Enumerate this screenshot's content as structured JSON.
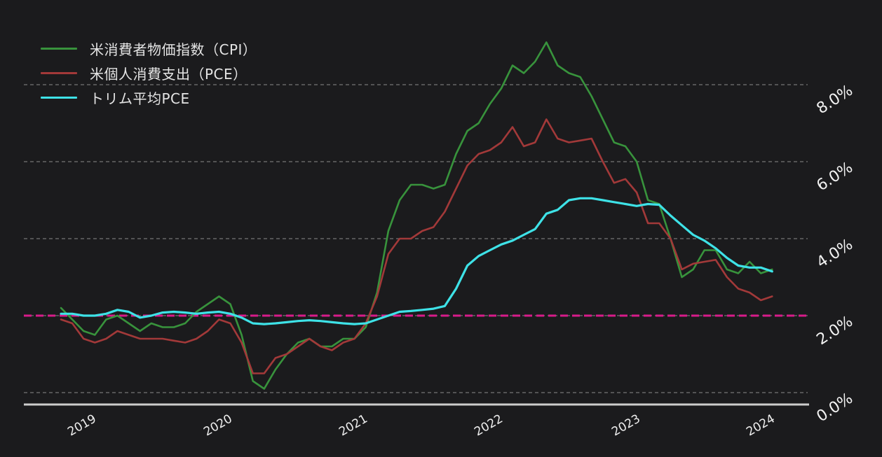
{
  "chart_data": {
    "type": "line",
    "title": "",
    "x_start": "2018-11",
    "x_end": "2024-02",
    "x_frequency": "monthly",
    "x_tick_labels": [
      "2019",
      "2020",
      "2021",
      "2022",
      "2023",
      "2024"
    ],
    "y_tick_labels": [
      "8.0%",
      "6.0%",
      "4.0%",
      "2.0%",
      "0.0%"
    ],
    "y_gridline_values": [
      8.0,
      6.0,
      4.0,
      2.0,
      0.0
    ],
    "ylim": [
      0,
      9.6
    ],
    "grid": "dashed-horizontal",
    "legend_position": "top-left",
    "background_color": "#1b1b1d",
    "gridline_color": "#a8a8a8",
    "axis_line_color": "#cccccc",
    "target_line": {
      "value": 2.0,
      "color": "#d81b8a",
      "style": "dashed"
    },
    "series": [
      {
        "name": "cpi",
        "label": "米消費者物価指数（CPI）",
        "color": "#38933c",
        "values": [
          2.2,
          1.9,
          1.6,
          1.5,
          1.9,
          2.0,
          1.8,
          1.6,
          1.8,
          1.7,
          1.7,
          1.8,
          2.1,
          2.3,
          2.5,
          2.3,
          1.5,
          0.3,
          0.1,
          0.6,
          1.0,
          1.3,
          1.4,
          1.2,
          1.2,
          1.4,
          1.4,
          1.7,
          2.6,
          4.2,
          5.0,
          5.4,
          5.4,
          5.3,
          5.4,
          6.2,
          6.8,
          7.0,
          7.5,
          7.9,
          8.5,
          8.3,
          8.6,
          9.1,
          8.5,
          8.3,
          8.2,
          7.7,
          7.1,
          6.5,
          6.4,
          6.0,
          5.0,
          4.9,
          4.0,
          3.0,
          3.2,
          3.7,
          3.7,
          3.2,
          3.1,
          3.4,
          3.1,
          3.2
        ]
      },
      {
        "name": "pce",
        "label": "米個人消費支出（PCE）",
        "color": "#a23939",
        "values": [
          1.9,
          1.8,
          1.4,
          1.3,
          1.4,
          1.6,
          1.5,
          1.4,
          1.4,
          1.4,
          1.35,
          1.3,
          1.4,
          1.6,
          1.9,
          1.8,
          1.3,
          0.5,
          0.5,
          0.9,
          1.0,
          1.2,
          1.4,
          1.2,
          1.1,
          1.3,
          1.4,
          1.8,
          2.5,
          3.6,
          4.0,
          4.0,
          4.2,
          4.3,
          4.7,
          5.3,
          5.9,
          6.2,
          6.3,
          6.5,
          6.9,
          6.4,
          6.5,
          7.1,
          6.6,
          6.5,
          6.55,
          6.6,
          6.0,
          5.45,
          5.55,
          5.2,
          4.4,
          4.4,
          4.0,
          3.2,
          3.35,
          3.4,
          3.45,
          3.0,
          2.7,
          2.6,
          2.4,
          2.5
        ]
      },
      {
        "name": "trimmed-mean-pce",
        "label": "トリム平均PCE",
        "color": "#3ee2e7",
        "values": [
          2.05,
          2.05,
          2.0,
          2.0,
          2.05,
          2.15,
          2.1,
          1.95,
          2.0,
          2.08,
          2.1,
          2.08,
          2.05,
          2.08,
          2.1,
          2.05,
          1.95,
          1.8,
          1.78,
          1.8,
          1.83,
          1.86,
          1.88,
          1.86,
          1.83,
          1.8,
          1.78,
          1.8,
          1.9,
          2.0,
          2.1,
          2.12,
          2.15,
          2.18,
          2.25,
          2.7,
          3.3,
          3.55,
          3.7,
          3.85,
          3.95,
          4.1,
          4.25,
          4.65,
          4.75,
          5.0,
          5.05,
          5.05,
          5.0,
          4.95,
          4.9,
          4.85,
          4.9,
          4.88,
          4.6,
          4.35,
          4.1,
          3.95,
          3.75,
          3.5,
          3.3,
          3.25,
          3.25,
          3.15
        ]
      }
    ]
  }
}
